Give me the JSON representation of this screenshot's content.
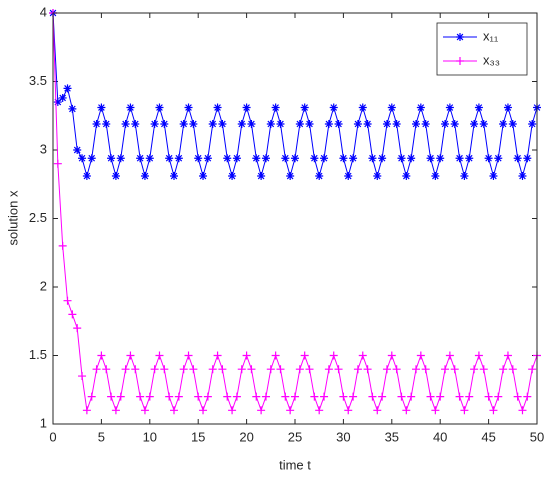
{
  "chart_data": {
    "type": "line",
    "xlabel": "time t",
    "ylabel": "solution x",
    "x": [
      0,
      0.5,
      1,
      1.5,
      2,
      2.5,
      3,
      3.5,
      4,
      4.5,
      5,
      5.5,
      6,
      6.5,
      7,
      7.5,
      8,
      8.5,
      9,
      9.5,
      10,
      10.5,
      11,
      11.5,
      12,
      12.5,
      13,
      13.5,
      14,
      14.5,
      15,
      15.5,
      16,
      16.5,
      17,
      17.5,
      18,
      18.5,
      19,
      19.5,
      20,
      20.5,
      21,
      21.5,
      22,
      22.5,
      23,
      23.5,
      24,
      24.5,
      25,
      25.5,
      26,
      26.5,
      27,
      27.5,
      28,
      28.5,
      29,
      29.5,
      30,
      30.5,
      31,
      31.5,
      32,
      32.5,
      33,
      33.5,
      34,
      34.5,
      35,
      35.5,
      36,
      36.5,
      37,
      37.5,
      38,
      38.5,
      39,
      39.5,
      40,
      40.5,
      41,
      41.5,
      42,
      42.5,
      43,
      43.5,
      44,
      44.5,
      45,
      45.5,
      46,
      46.5,
      47,
      47.5,
      48,
      48.5,
      49,
      49.5,
      50
    ],
    "series": [
      {
        "name": "x₁₁",
        "color": "#0000ff",
        "marker": "asterisk",
        "values": [
          4,
          3.35,
          3.38,
          3.45,
          3.3,
          3.0,
          2.94,
          2.81,
          2.94,
          3.19,
          3.31,
          3.19,
          2.94,
          2.81,
          2.94,
          3.19,
          3.31,
          3.19,
          2.94,
          2.81,
          2.94,
          3.19,
          3.31,
          3.19,
          2.94,
          2.81,
          2.94,
          3.19,
          3.31,
          3.19,
          2.94,
          2.81,
          2.94,
          3.19,
          3.31,
          3.19,
          2.94,
          2.81,
          2.94,
          3.19,
          3.31,
          3.19,
          2.94,
          2.81,
          2.94,
          3.19,
          3.31,
          3.19,
          2.94,
          2.81,
          2.94,
          3.19,
          3.31,
          3.19,
          2.94,
          2.81,
          2.94,
          3.19,
          3.31,
          3.19,
          2.94,
          2.81,
          2.94,
          3.19,
          3.31,
          3.19,
          2.94,
          2.81,
          2.94,
          3.19,
          3.31,
          3.19,
          2.94,
          2.81,
          2.94,
          3.19,
          3.31,
          3.19,
          2.94,
          2.81,
          2.94,
          3.19,
          3.31,
          3.19,
          2.94,
          2.81,
          2.94,
          3.19,
          3.31,
          3.19,
          2.94,
          2.81,
          2.94,
          3.19,
          3.31,
          3.19,
          2.94,
          2.81,
          2.94,
          3.19,
          3.31
        ]
      },
      {
        "name": "x₃₃",
        "color": "#ff00ff",
        "marker": "plus",
        "values": [
          4,
          2.9,
          2.3,
          1.9,
          1.8,
          1.7,
          1.35,
          1.1,
          1.2,
          1.4,
          1.5,
          1.4,
          1.2,
          1.1,
          1.2,
          1.4,
          1.5,
          1.4,
          1.2,
          1.1,
          1.2,
          1.4,
          1.5,
          1.4,
          1.2,
          1.1,
          1.2,
          1.4,
          1.5,
          1.4,
          1.2,
          1.1,
          1.2,
          1.4,
          1.5,
          1.4,
          1.2,
          1.1,
          1.2,
          1.4,
          1.5,
          1.4,
          1.2,
          1.1,
          1.2,
          1.4,
          1.5,
          1.4,
          1.2,
          1.1,
          1.2,
          1.4,
          1.5,
          1.4,
          1.2,
          1.1,
          1.2,
          1.4,
          1.5,
          1.4,
          1.2,
          1.1,
          1.2,
          1.4,
          1.5,
          1.4,
          1.2,
          1.1,
          1.2,
          1.4,
          1.5,
          1.4,
          1.2,
          1.1,
          1.2,
          1.4,
          1.5,
          1.4,
          1.2,
          1.1,
          1.2,
          1.4,
          1.5,
          1.4,
          1.2,
          1.1,
          1.2,
          1.4,
          1.5,
          1.4,
          1.2,
          1.1,
          1.2,
          1.4,
          1.5,
          1.4,
          1.2,
          1.1,
          1.2,
          1.4,
          1.5
        ]
      }
    ],
    "xlim": [
      0,
      50
    ],
    "xticks": [
      0,
      5,
      10,
      15,
      20,
      25,
      30,
      35,
      40,
      45,
      50
    ],
    "ylim": [
      1,
      4
    ],
    "yticks": [
      1,
      1.5,
      2,
      2.5,
      3,
      3.5,
      4
    ],
    "legend": "top-right"
  }
}
